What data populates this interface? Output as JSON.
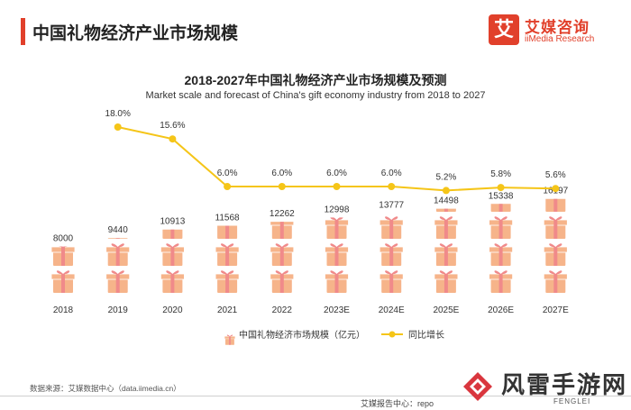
{
  "header": {
    "title": "中国礼物经济产业市场规模",
    "logo_cn": "艾媒咨询",
    "logo_en": "iiMedia Research",
    "logo_mark": "艾"
  },
  "colors": {
    "accent": "#e1402b",
    "gift_box": "#f6b48a",
    "gift_ribbon": "#f08a8a",
    "line": "#f5c518"
  },
  "chart_data": {
    "type": "bar",
    "title": "2018-2027年中国礼物经济产业市场规模及预测",
    "subtitle": "Market scale and forecast of China's gift economy industry from 2018 to 2027",
    "categories": [
      "2018",
      "2019",
      "2020",
      "2021",
      "2022",
      "2023E",
      "2024E",
      "2025E",
      "2026E",
      "2027E"
    ],
    "series": [
      {
        "name": "中国礼物经济市场规模（亿元）",
        "type": "bar",
        "values": [
          8000,
          9440,
          10913,
          11568,
          12262,
          12998,
          13777,
          14498,
          15338,
          16197
        ]
      },
      {
        "name": "同比增长",
        "type": "line",
        "values": [
          null,
          18.0,
          15.6,
          6.0,
          6.0,
          6.0,
          6.0,
          5.2,
          5.8,
          5.6
        ],
        "labels": [
          "",
          "18.0%",
          "15.6%",
          "6.0%",
          "6.0%",
          "6.0%",
          "6.0%",
          "5.2%",
          "5.8%",
          "5.6%"
        ]
      }
    ],
    "bar_ylim": [
      0,
      16000
    ],
    "line_ylim": [
      0,
      20
    ],
    "grid": false,
    "legend": "bottom-center"
  },
  "footer": {
    "source": "数据来源：艾媒数据中心（data.iimedia.cn）",
    "report_center": "艾媒报告中心：repo",
    "watermark": "风雷手游网",
    "watermark_sub": "FENGLEI"
  }
}
